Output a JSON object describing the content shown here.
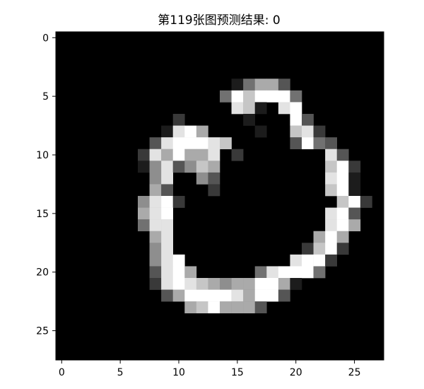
{
  "figure": {
    "title": "第119张图预测结果: 0"
  },
  "image": {
    "description_kind": "28x28 grayscale handwritten digit",
    "colormap": "gray",
    "x_ticks": [
      "0",
      "5",
      "10",
      "15",
      "20",
      "25"
    ],
    "y_ticks": [
      "0",
      "5",
      "10",
      "15",
      "20",
      "25"
    ],
    "pixels": [
      "............................",
      "............................",
      "............................",
      "............................",
      "...............14663........",
      "..............4979994.......",
      "...............871.89.......",
      "..........2.....1...93......",
      ".........1896....1..782.....",
      "........3899987.....3943....",
      ".......2869668.2.......83...",
      ".......1583576.........792...",
      "........58..53.........891...",
      "........63...2.........791...",
      ".......5892.............792..",
      ".......689.............893...",
      ".......488.............896...",
      "........68............696....",
      "........58...........2792....",
      "........589.........8992.....",
      "........3896.....489994......",
      "........2898765669961........",
      ".........36999986993.........",
      "...........6796663...........",
      "............................",
      "............................",
      "............................",
      "............................"
    ]
  }
}
